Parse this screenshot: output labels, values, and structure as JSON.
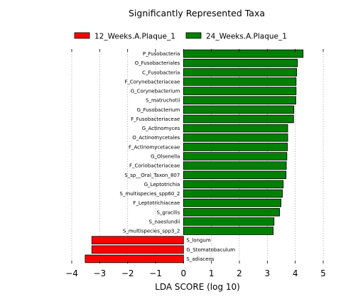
{
  "chart_data": {
    "type": "bar",
    "orientation": "horizontal",
    "title": "Significantly Represented Taxa",
    "xlabel": "LDA SCORE (log 10)",
    "ylabel": "",
    "xlim": [
      -4,
      5
    ],
    "xticks": [
      -4,
      -3,
      -2,
      -1,
      0,
      1,
      2,
      3,
      4,
      5
    ],
    "xtick_labels": [
      "−4",
      "−3",
      "−2",
      "−1",
      "0",
      "1",
      "2",
      "3",
      "4",
      "5"
    ],
    "grid": true,
    "legend_position": "top",
    "colors": {
      "12_Weeks.A.Plaque_1": "#ff0000",
      "24_Weeks.A.Plaque_1": "#008000"
    },
    "legend": [
      {
        "name": "12_Weeks.A.Plaque_1",
        "color": "#ff0000"
      },
      {
        "name": "24_Weeks.A.Plaque_1",
        "color": "#008000"
      }
    ],
    "bars": [
      {
        "label": "P_Fusobacteria",
        "value": 4.28,
        "group": "24_Weeks.A.Plaque_1"
      },
      {
        "label": "O_Fusobacteriales",
        "value": 4.08,
        "group": "24_Weeks.A.Plaque_1"
      },
      {
        "label": "C_Fusobacteria",
        "value": 4.05,
        "group": "24_Weeks.A.Plaque_1"
      },
      {
        "label": "F_Corynebacteriaceae",
        "value": 4.03,
        "group": "24_Weeks.A.Plaque_1"
      },
      {
        "label": "G_Corynebacterium",
        "value": 4.03,
        "group": "24_Weeks.A.Plaque_1"
      },
      {
        "label": "S_matruchotii",
        "value": 4.02,
        "group": "24_Weeks.A.Plaque_1"
      },
      {
        "label": "G_Fusobacterium",
        "value": 3.95,
        "group": "24_Weeks.A.Plaque_1"
      },
      {
        "label": "F_Fusobacteriaceae",
        "value": 3.94,
        "group": "24_Weeks.A.Plaque_1"
      },
      {
        "label": "G_Actinomyces",
        "value": 3.73,
        "group": "24_Weeks.A.Plaque_1"
      },
      {
        "label": "O_Actinomycetales",
        "value": 3.73,
        "group": "24_Weeks.A.Plaque_1"
      },
      {
        "label": "F_Actinomycetaceae",
        "value": 3.72,
        "group": "24_Weeks.A.Plaque_1"
      },
      {
        "label": "G_Olsenella",
        "value": 3.7,
        "group": "24_Weeks.A.Plaque_1"
      },
      {
        "label": "F_Coriobacteriaceae",
        "value": 3.68,
        "group": "24_Weeks.A.Plaque_1"
      },
      {
        "label": "S_sp__Oral_Taxon_807",
        "value": 3.67,
        "group": "24_Weeks.A.Plaque_1"
      },
      {
        "label": "G_Leptotrichia",
        "value": 3.57,
        "group": "24_Weeks.A.Plaque_1"
      },
      {
        "label": "S_multispecies_spp60_2",
        "value": 3.54,
        "group": "24_Weeks.A.Plaque_1"
      },
      {
        "label": "F_Leptotrichiaceae",
        "value": 3.49,
        "group": "24_Weeks.A.Plaque_1"
      },
      {
        "label": "S_gracilis",
        "value": 3.44,
        "group": "24_Weeks.A.Plaque_1"
      },
      {
        "label": "S_naeslundii",
        "value": 3.24,
        "group": "24_Weeks.A.Plaque_1"
      },
      {
        "label": "S_multispecies_spp3_2",
        "value": 3.21,
        "group": "24_Weeks.A.Plaque_1"
      },
      {
        "label": "S_longum",
        "value": -3.28,
        "group": "12_Weeks.A.Plaque_1"
      },
      {
        "label": "G_Stomatobaculum",
        "value": -3.28,
        "group": "12_Weeks.A.Plaque_1"
      },
      {
        "label": "S_adiacens",
        "value": -3.52,
        "group": "12_Weeks.A.Plaque_1"
      }
    ]
  }
}
